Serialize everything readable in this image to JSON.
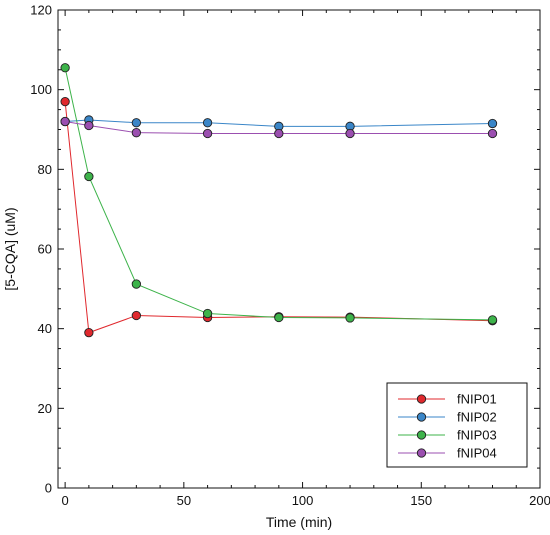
{
  "chart_data": {
    "type": "line",
    "title": "",
    "xlabel": "Time (min)",
    "ylabel": "[5-CQA] (uM)",
    "xlim": [
      -3,
      200
    ],
    "ylim": [
      0,
      120
    ],
    "xticks": [
      0,
      50,
      100,
      150,
      200
    ],
    "yticks": [
      0,
      20,
      40,
      60,
      80,
      100,
      120
    ],
    "xtick_labels": [
      "0",
      "50",
      "100",
      "150",
      "200"
    ],
    "ytick_labels": [
      "0",
      "20",
      "40",
      "60",
      "80",
      "100",
      "120"
    ],
    "grid": false,
    "legend_position": "bottom-right",
    "series": [
      {
        "name": "fNIP01",
        "color": "#e0282d",
        "x": [
          0,
          10,
          30,
          60,
          90,
          120,
          180
        ],
        "y": [
          97.0,
          39.0,
          43.3,
          42.8,
          43.0,
          42.9,
          42.0
        ]
      },
      {
        "name": "fNIP02",
        "color": "#3a86c8",
        "x": [
          0,
          10,
          30,
          60,
          90,
          120,
          180
        ],
        "y": [
          92.0,
          92.4,
          91.7,
          91.7,
          90.8,
          90.8,
          91.5
        ]
      },
      {
        "name": "fNIP03",
        "color": "#3db34a",
        "x": [
          0,
          10,
          30,
          60,
          90,
          120,
          180
        ],
        "y": [
          105.5,
          78.2,
          51.2,
          43.8,
          42.8,
          42.7,
          42.2
        ]
      },
      {
        "name": "fNIP04",
        "color": "#9b4fb0",
        "x": [
          0,
          10,
          30,
          60,
          90,
          120,
          180
        ],
        "y": [
          92.0,
          91.0,
          89.2,
          89.0,
          89.0,
          89.0,
          89.0
        ]
      }
    ]
  }
}
